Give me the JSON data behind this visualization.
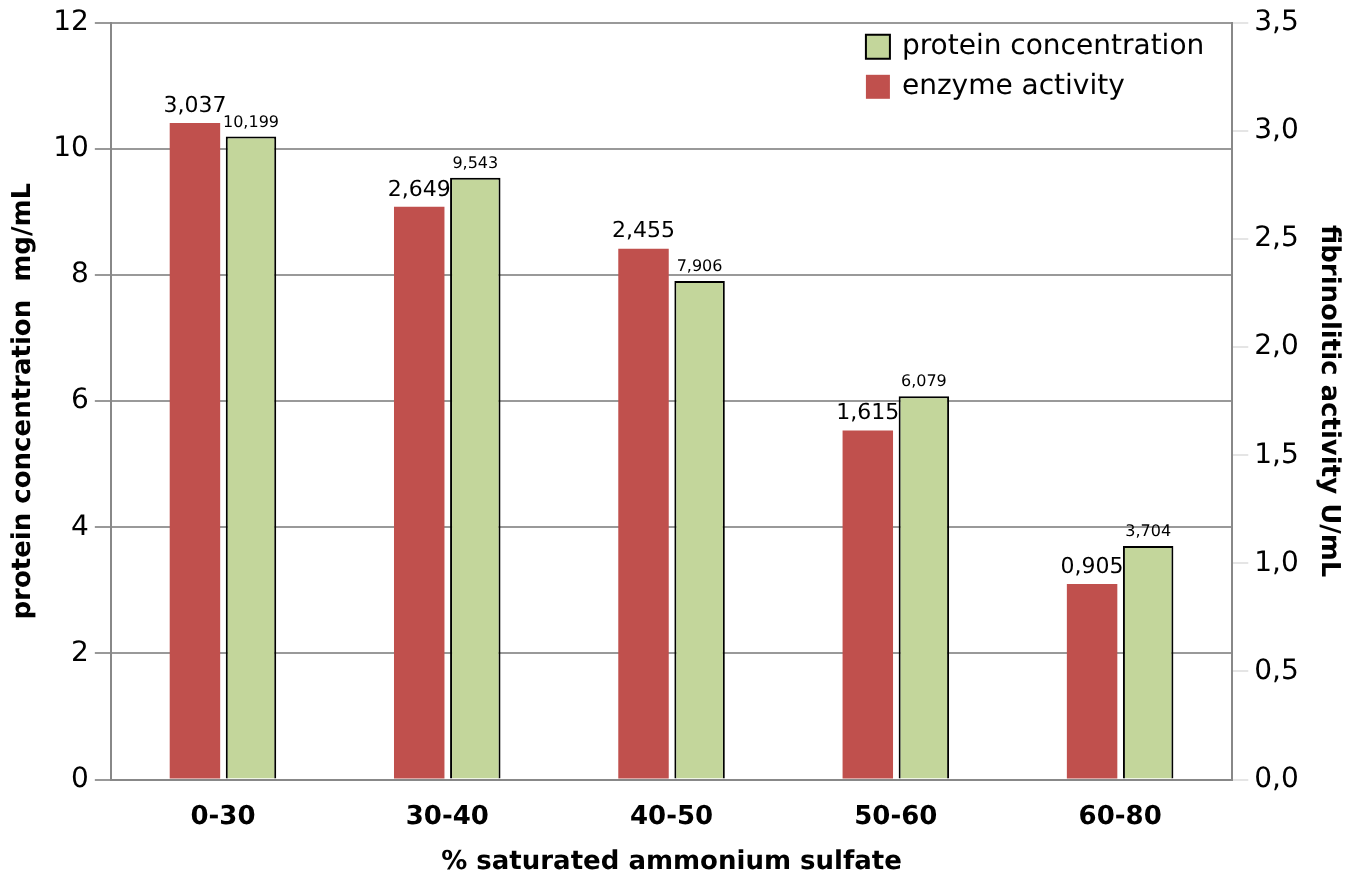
{
  "chart_data": {
    "type": "bar",
    "xlabel": "% saturated ammonium sulfate",
    "ylabel": "protein concentration  mg/mL",
    "y2label": "fibrinolitic activity U/mL",
    "categories": [
      "0-30",
      "30-40",
      "40-50",
      "50-60",
      "60-80"
    ],
    "series": [
      {
        "name": "enzyme activity",
        "color": "#c0504d",
        "axis": "y2",
        "values": [
          3.037,
          2.649,
          2.455,
          1.615,
          0.905
        ],
        "value_labels": [
          "3,037",
          "2,649",
          "2,455",
          "1,615",
          "0,905"
        ]
      },
      {
        "name": "protein concentration",
        "color": "#c3d69b",
        "values": [
          10.199,
          9.543,
          7.906,
          6.079,
          3.704
        ],
        "value_labels": [
          "10,199",
          "9,543",
          "7,906",
          "6,079",
          "3,704"
        ]
      }
    ],
    "ylim": [
      0,
      12
    ],
    "yticks": [
      0,
      2,
      4,
      6,
      8,
      10,
      12
    ],
    "y2lim": [
      0,
      3.5
    ],
    "y2ticks": [
      {
        "value": 0,
        "label": "0,0"
      },
      {
        "value": 0.5,
        "label": "0,5"
      },
      {
        "value": 1,
        "label": "1,0"
      },
      {
        "value": 1.5,
        "label": "1,5"
      },
      {
        "value": 2,
        "label": "2,0"
      },
      {
        "value": 2.5,
        "label": "2,5"
      },
      {
        "value": 3,
        "label": "3,0"
      },
      {
        "value": 3.5,
        "label": "3,5"
      }
    ],
    "grid": "y",
    "legend": "top right"
  }
}
